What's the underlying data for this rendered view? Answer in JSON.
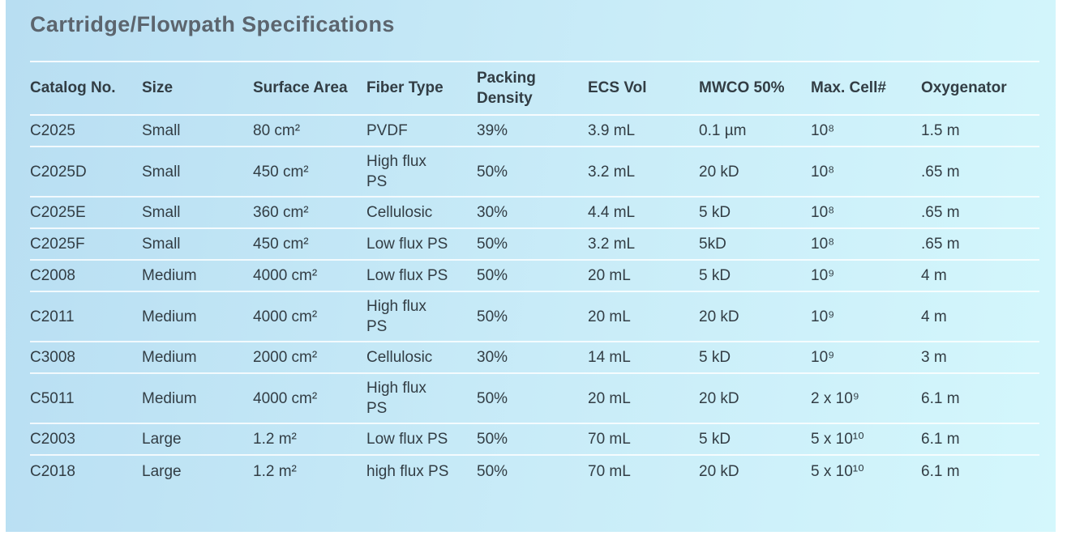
{
  "title": "Cartridge/Flowpath Specifications",
  "table": {
    "columns": [
      {
        "key": "catalog-no",
        "label": "Catalog No."
      },
      {
        "key": "size",
        "label": "Size"
      },
      {
        "key": "surface-area",
        "label": "Surface Area"
      },
      {
        "key": "fiber-type",
        "label": "Fiber Type"
      },
      {
        "key": "packing-density",
        "label": "Packing Density"
      },
      {
        "key": "ecs-vol",
        "label": "ECS Vol"
      },
      {
        "key": "mwco-50",
        "label": "MWCO 50%"
      },
      {
        "key": "max-cell",
        "label": "Max. Cell#"
      },
      {
        "key": "oxygenator",
        "label": "Oxygenator"
      }
    ],
    "rows": [
      {
        "cells": [
          "C2025",
          "Small",
          "80 cm²",
          "PVDF",
          "39%",
          "3.9 mL",
          "0.1 µm",
          "10⁸",
          "1.5 m"
        ]
      },
      {
        "cells": [
          "C2025D",
          "Small",
          "450 cm²",
          "High flux PS",
          "50%",
          "3.2 mL",
          "20 kD",
          "10⁸",
          ".65 m"
        ]
      },
      {
        "cells": [
          "C2025E",
          "Small",
          "360 cm²",
          "Cellulosic",
          "30%",
          "4.4 mL",
          "5 kD",
          "10⁸",
          ".65 m"
        ]
      },
      {
        "cells": [
          "C2025F",
          "Small",
          "450 cm²",
          "Low flux PS",
          "50%",
          "3.2 mL",
          "5kD",
          "10⁸",
          ".65 m"
        ]
      },
      {
        "cells": [
          "C2008",
          "Medium",
          "4000 cm²",
          "Low flux PS",
          "50%",
          "20 mL",
          "5 kD",
          "10⁹",
          "4 m"
        ]
      },
      {
        "cells": [
          "C2011",
          "Medium",
          "4000 cm²",
          "High flux PS",
          "50%",
          "20 mL",
          "20 kD",
          "10⁹",
          "4 m"
        ]
      },
      {
        "cells": [
          "C3008",
          "Medium",
          "2000 cm²",
          "Cellulosic",
          "30%",
          "14 mL",
          "5 kD",
          "10⁹",
          "3 m"
        ]
      },
      {
        "cells": [
          "C5011",
          "Medium",
          "4000 cm²",
          "High flux PS",
          "50%",
          "20 mL",
          "20 kD",
          "2 x 10⁹",
          "6.1 m"
        ]
      },
      {
        "cells": [
          "C2003",
          "Large",
          "1.2 m²",
          "Low flux PS",
          "50%",
          "70 mL",
          "5 kD",
          "5 x 10¹⁰",
          "6.1 m"
        ]
      },
      {
        "cells": [
          "C2018",
          "Large",
          "1.2 m²",
          "high flux PS",
          "50%",
          "70 mL",
          "20 kD",
          "5 x 10¹⁰",
          "6.1 m"
        ]
      }
    ]
  },
  "colors": {
    "panel_gradient_start": "#b8def2",
    "panel_gradient_end": "#d4f7fc",
    "title_text": "#5c656e",
    "table_text": "#323d44",
    "row_divider": "#ffffff"
  }
}
